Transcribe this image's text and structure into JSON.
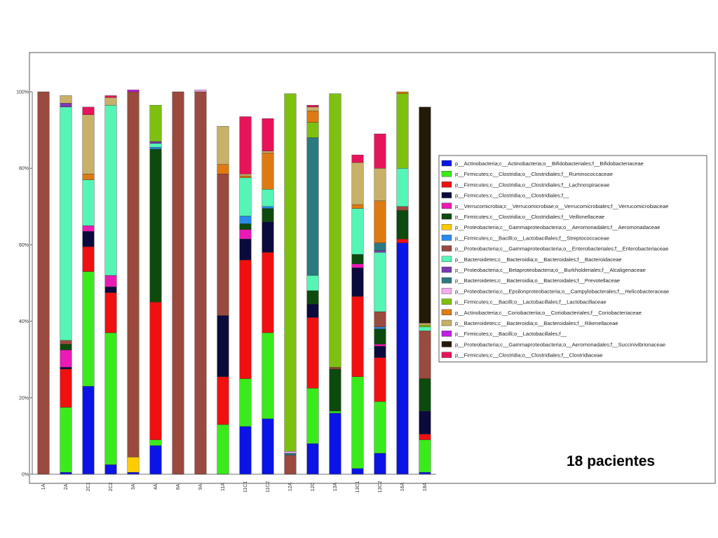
{
  "annotation": "18 pacientes",
  "chart_data": {
    "type": "bar",
    "stacked": true,
    "ylim": [
      0,
      100
    ],
    "yticks": [
      "0%",
      "20%",
      "40%",
      "60%",
      "80%",
      "100%"
    ],
    "ytick_values": [
      0,
      20,
      40,
      60,
      80,
      100
    ],
    "grid": false,
    "legend_position": "right",
    "categories": [
      "1A",
      "2A",
      "2C1",
      "2C2",
      "3A",
      "4A",
      "8A",
      "9A",
      "11A",
      "11C1",
      "11C2",
      "12A",
      "12C",
      "13A",
      "13C1",
      "13C2",
      "16A",
      "18A"
    ],
    "series": [
      {
        "name": "p__Actinobacteria;c__Actinobacteria;o__Bifidobacteriales;f__Bifidobacteriaceae",
        "color": "#0a14e6",
        "values": [
          0,
          0.5,
          23,
          2.5,
          0.5,
          7.5,
          0,
          0,
          0,
          12.5,
          14.5,
          0,
          8,
          16,
          1.5,
          5.5,
          60.5,
          0.5
        ]
      },
      {
        "name": "p__Firmicutes;c__Clostridia;o__Clostridiales;f__Ruminococcaceae",
        "color": "#3aeb1c",
        "values": [
          0,
          17,
          30,
          34.5,
          0,
          1.5,
          0,
          0,
          13,
          12.5,
          22.5,
          0,
          14.5,
          0.5,
          24,
          13.5,
          0,
          8.5
        ]
      },
      {
        "name": "p__Firmicutes;c__Clostridia;o__Clostridiales;f__Lachnospiraceae",
        "color": "#f01010",
        "values": [
          0,
          10,
          6.5,
          10.5,
          0,
          36,
          0,
          0,
          12.5,
          31,
          21,
          0,
          18.5,
          0,
          21,
          11.5,
          1,
          1.5
        ]
      },
      {
        "name": "p__Firmicutes;c__Clostridia;o__Clostridiales;f__",
        "color": "#0a0a3c",
        "values": [
          0,
          0.5,
          4,
          1.5,
          0,
          0,
          0,
          0,
          16,
          5.5,
          8,
          0,
          3.5,
          0,
          7.5,
          3,
          0,
          6
        ]
      },
      {
        "name": "p__Verrucomicrobia;c__Verrucomicrobiae;o__Verrucomicrobiales;f__Verrucomicrobiaceae",
        "color": "#ea1ab4",
        "values": [
          0,
          4.5,
          1.5,
          3,
          0,
          0,
          0,
          0,
          0,
          2.5,
          0,
          0,
          0,
          0,
          1,
          0.5,
          0,
          0
        ]
      },
      {
        "name": "p__Firmicutes;c__Clostridia;o__Clostridiales;f__Veillonellaceae",
        "color": "#0d4a0d",
        "values": [
          0,
          1.5,
          0,
          0,
          0,
          40,
          0,
          0,
          0,
          1.5,
          3.5,
          0,
          3.5,
          11,
          2.5,
          4,
          7.5,
          8.5
        ]
      },
      {
        "name": "p__Proteobacteria;c__Gammaproteobacteria;o__Aeromonadales;f__Aeromonadaceae",
        "color": "#ffcc00",
        "values": [
          0,
          0,
          0,
          0,
          4,
          0,
          0,
          0,
          0,
          0,
          0,
          0,
          0,
          0,
          0,
          0,
          0,
          0
        ]
      },
      {
        "name": "p__Firmicutes;c__Bacilli;o__Lactobacillales;f__Streptococcaceae",
        "color": "#2a8ae8",
        "values": [
          0,
          0,
          0,
          0,
          0,
          0.5,
          0,
          0,
          0,
          2,
          0.5,
          0,
          0,
          0,
          0,
          0.5,
          0,
          0
        ]
      },
      {
        "name": "p__Proteobacteria;c__Gammaproteobacteria;o__Enterobacteriales;f__Enterobacteriaceae",
        "color": "#9a4a3e",
        "values": [
          100,
          1,
          0,
          0,
          95.5,
          0,
          100,
          100,
          37,
          0,
          0,
          5,
          0,
          0.5,
          0,
          4,
          1,
          12.5
        ]
      },
      {
        "name": "p__Bacteroidetes;c__Bacteroidia;o__Bacteroidales;f__Bacteroidaceae",
        "color": "#55f5b5",
        "values": [
          0,
          61,
          12,
          44.5,
          0,
          1,
          0,
          0,
          0,
          10,
          4.5,
          0,
          4,
          0,
          12,
          15.5,
          10,
          1
        ]
      },
      {
        "name": "p__Proteobacteria;c__Betaproteobacteria;o__Burkholderiales;f__Alcaligenaceae",
        "color": "#7a3ab0",
        "values": [
          0,
          1,
          0,
          0,
          0,
          0.5,
          0,
          0,
          0,
          0,
          0,
          0,
          0,
          0,
          0,
          0.5,
          0,
          0
        ]
      },
      {
        "name": "p__Bacteroidetes;c__Bacteroidia;o__Bacteroidales;f__Prevotellaceae",
        "color": "#2a7a80",
        "values": [
          0,
          0,
          0,
          0,
          0,
          0,
          0,
          0,
          0,
          0,
          0,
          0.5,
          36,
          0,
          0,
          2,
          0,
          0
        ]
      },
      {
        "name": "p__Proteobacteria;c__Epsilonproteobacteria;o__Campylobacterales;f__Helicobacteraceae",
        "color": "#f5aaf0",
        "values": [
          0,
          0,
          0,
          0,
          0,
          0,
          0,
          0.5,
          0,
          0,
          0,
          0.5,
          0,
          0,
          0,
          0,
          0,
          0
        ]
      },
      {
        "name": "p__Firmicutes;c__Bacilli;o__Lactobacillales;f__Lactobacillaceae",
        "color": "#7ec010",
        "values": [
          0,
          0,
          0,
          0,
          0,
          9.5,
          0,
          0,
          0,
          0,
          0,
          93.5,
          4,
          71.5,
          0,
          0,
          19.5,
          0.5
        ]
      },
      {
        "name": "p__Actinobacteria;c__Coriobacteriia;o__Coriobacteriales;f__Coriobacteriaceae",
        "color": "#de7a10",
        "values": [
          0,
          0,
          1.5,
          0,
          0,
          0,
          0,
          0,
          2.5,
          0.5,
          9.5,
          0,
          3,
          0,
          1,
          11,
          0.5,
          0
        ]
      },
      {
        "name": "p__Bacteroidetes;c__Bacteroidia;o__Bacteroidales;f__Rikenellaceae",
        "color": "#c8b068",
        "values": [
          0,
          2,
          15.5,
          2,
          0,
          0,
          0,
          0,
          10,
          0.5,
          0.5,
          0,
          1,
          0,
          11,
          8.5,
          0,
          0.5
        ]
      },
      {
        "name": "p__Firmicutes;c__Bacilli;o__Lactobacillales;f__",
        "color": "#c020e0",
        "values": [
          0,
          0,
          0,
          0,
          0.5,
          0,
          0,
          0,
          0,
          0,
          0,
          0,
          0,
          0,
          0,
          0,
          0,
          0
        ]
      },
      {
        "name": "p__Proteobacteria;c__Gammaproteobacteria;o__Aeromonadales;f__Succinivibrionaceae",
        "color": "#241a08",
        "values": [
          0,
          0,
          0,
          0,
          0,
          0,
          0,
          0,
          0,
          0,
          0,
          0,
          0,
          0,
          0,
          0,
          0,
          56.5
        ]
      },
      {
        "name": "p__Firmicutes;c__Clostridia;o__Clostridiales;f__Clostridiaceae",
        "color": "#e8145a",
        "values": [
          0,
          0,
          2,
          0.5,
          0,
          0,
          0,
          0,
          0,
          15,
          8.5,
          0,
          0.5,
          0,
          2,
          9,
          0,
          0
        ]
      }
    ]
  }
}
